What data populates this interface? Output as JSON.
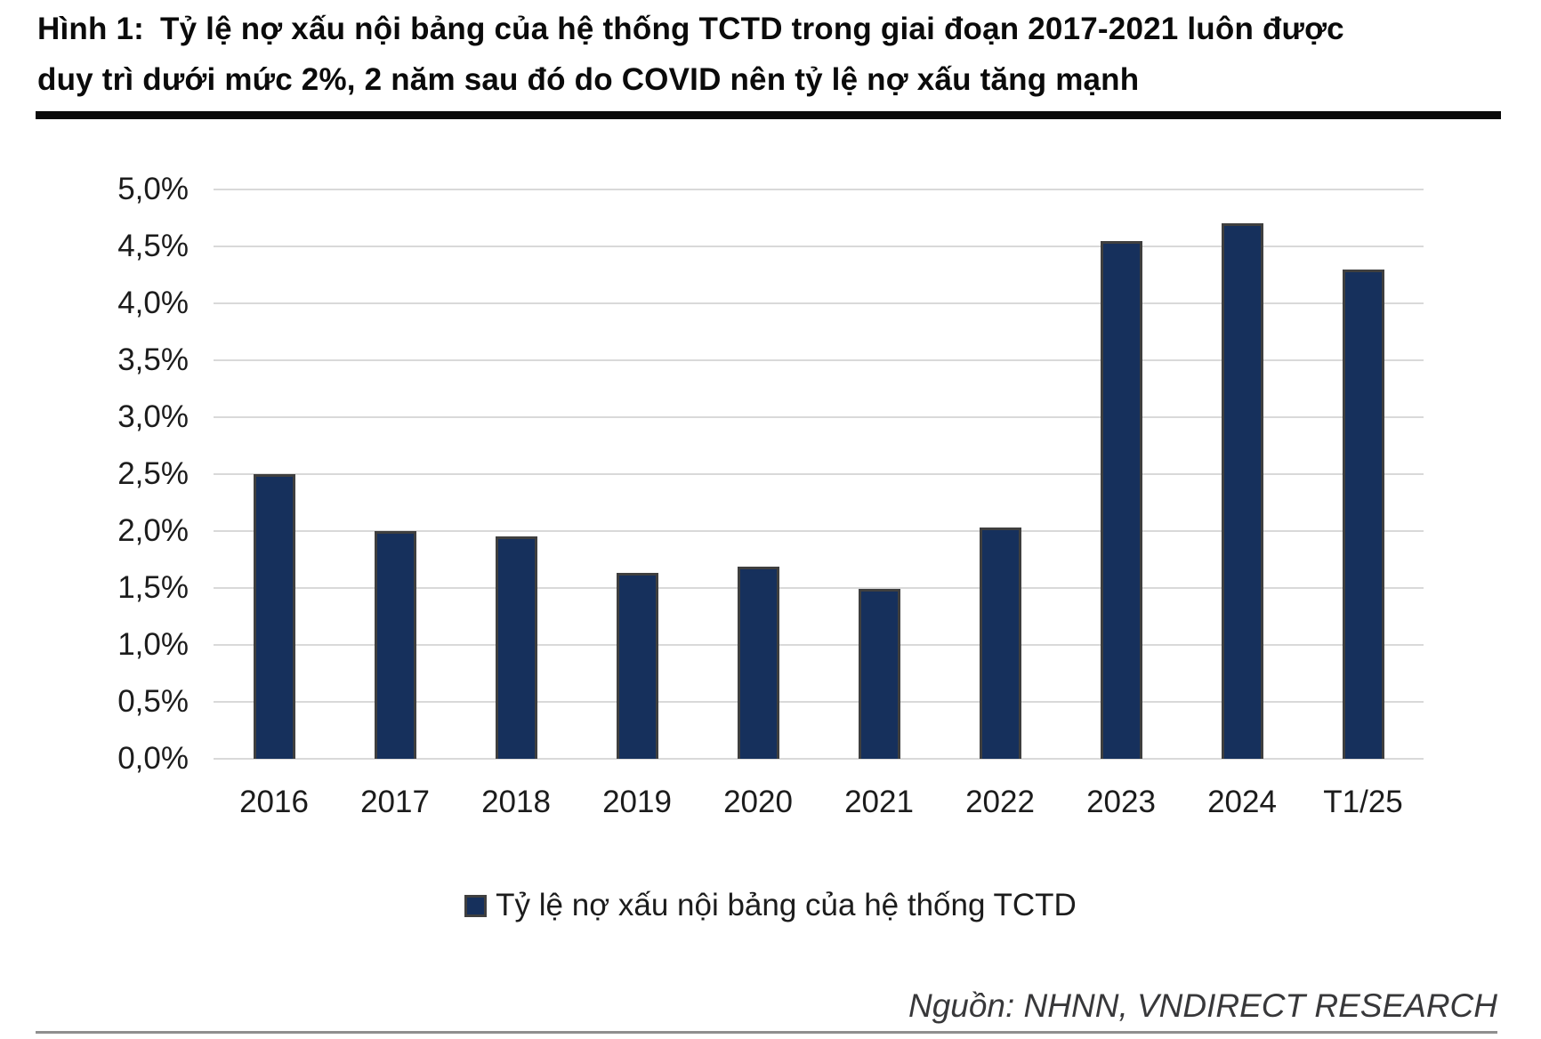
{
  "title": {
    "label": "Hình 1:",
    "line1": "Tỷ lệ nợ xấu nội bảng của hệ thống TCTD trong giai đoạn 2017-2021 luôn được",
    "line2": "duy trì dưới mức 2%, 2 năm sau đó do COVID nên tỷ lệ nợ xấu tăng mạnh"
  },
  "chart_data": {
    "type": "bar",
    "categories": [
      "2016",
      "2017",
      "2018",
      "2019",
      "2020",
      "2021",
      "2022",
      "2023",
      "2024",
      "T1/25"
    ],
    "values": [
      2.5,
      2.0,
      1.95,
      1.63,
      1.69,
      1.49,
      2.03,
      4.55,
      4.7,
      4.3
    ],
    "unit": "%",
    "title": "Tỷ lệ nợ xấu nội bảng của hệ thống TCTD",
    "xlabel": "",
    "ylabel": "",
    "ylim": [
      0,
      5
    ],
    "ytick_step": 0.5,
    "ytick_labels": [
      "0,0%",
      "0,5%",
      "1,0%",
      "1,5%",
      "2,0%",
      "2,5%",
      "3,0%",
      "3,5%",
      "4,0%",
      "4,5%",
      "5,0%"
    ],
    "grid": true,
    "legend_entries": [
      "Tỷ lệ nợ xấu nội bảng của hệ thống TCTD"
    ],
    "legend_position": "bottom-center"
  },
  "legend": {
    "label": "Tỷ lệ nợ xấu nội bảng của hệ thống TCTD"
  },
  "source": {
    "text": "Nguồn: NHNN, VNDIRECT RESEARCH"
  },
  "colors": {
    "bar_fill": "#16305C",
    "bar_border": "#3F3F3F",
    "gridline": "#D9D9D9",
    "axis_text": "#1C1C1C",
    "title_text": "#0B0B0B",
    "title_rule": "#0A0A0A",
    "source_text": "#38383A",
    "footer_rule": "#8F8F8F",
    "background": "#FFFFFF"
  }
}
